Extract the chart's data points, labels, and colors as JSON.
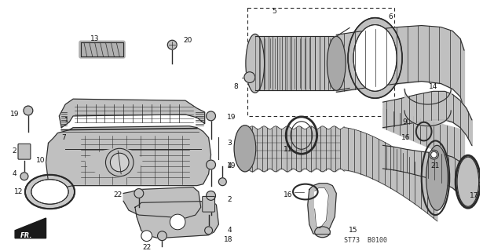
{
  "bg_color": "#f5f5f0",
  "diagram_code": "ST73  B0100",
  "label_fontsize": 6.5,
  "label_color": "#111111",
  "line_color": "#2a2a2a",
  "fill_light": "#d8d8d8",
  "fill_mid": "#c0c0c0",
  "fill_dark": "#a8a8a8"
}
